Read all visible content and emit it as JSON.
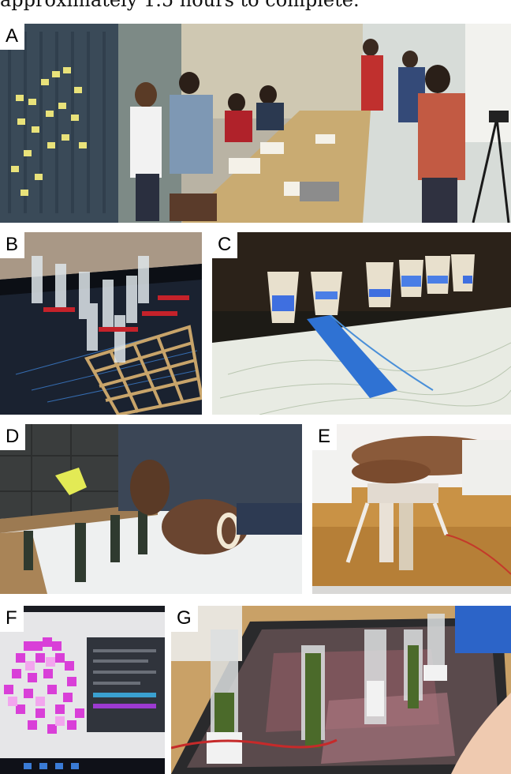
{
  "caption": "approximately 1.5 hours to complete.",
  "panels": [
    {
      "label": "A",
      "subject": "workshop room with sticky notes wall and people around a long table"
    },
    {
      "label": "B",
      "subject": "acrylic actuator towers on a grid over a display"
    },
    {
      "label": "C",
      "subject": "cups with projected blue light over a topographic map"
    },
    {
      "label": "D",
      "subject": "hands assembling actuators on a table"
    },
    {
      "label": "E",
      "subject": "hand pressing a tangible actuator"
    },
    {
      "label": "F",
      "subject": "laptop screen with magenta pixel pattern"
    },
    {
      "label": "G",
      "subject": "actuator towers on a tabletop display with a finger"
    }
  ]
}
